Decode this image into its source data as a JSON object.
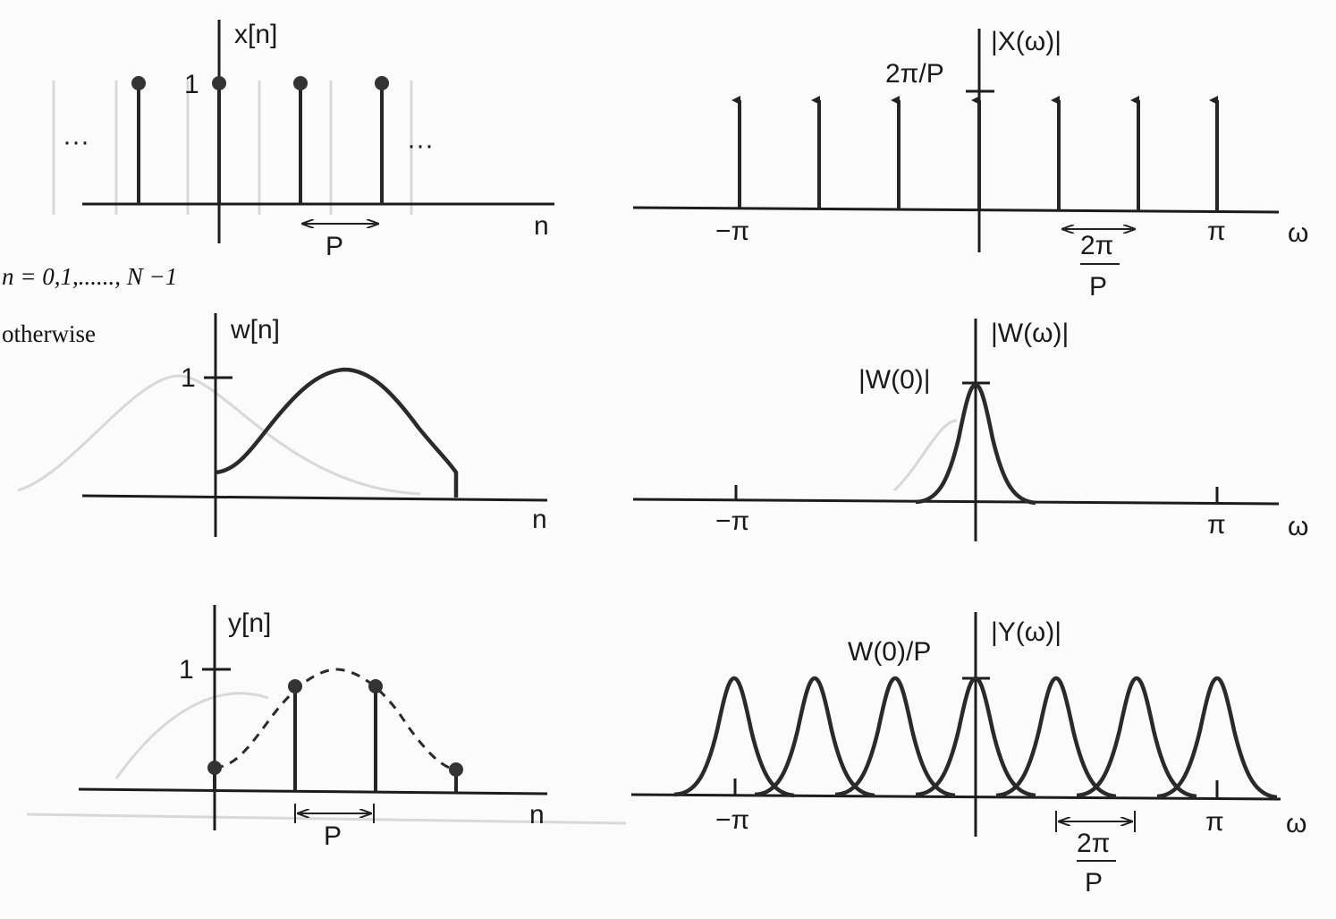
{
  "side_text": {
    "range": "n = 0,1,......, N −1",
    "otherwise": "otherwise"
  },
  "panels": {
    "x_time": {
      "title": "x[n]",
      "unit_tick": "1",
      "dots_left": "···",
      "dots_right": "···",
      "axis": "n",
      "period": "P"
    },
    "x_freq": {
      "title": "|X(ω)|",
      "height_label": "2π/P",
      "neg_pi": "−π",
      "pos_pi": "π",
      "axis": "ω",
      "spacing_num": "2π",
      "spacing_den": "P"
    },
    "w_time": {
      "title": "w[n]",
      "unit_tick": "1",
      "axis": "n"
    },
    "w_freq": {
      "title": "|W(ω)|",
      "peak_label": "|W(0)|",
      "neg_pi": "−π",
      "pos_pi": "π",
      "axis": "ω"
    },
    "y_time": {
      "title": "y[n]",
      "unit_tick": "1",
      "axis": "n",
      "period": "P"
    },
    "y_freq": {
      "title": "|Y(ω)|",
      "peak_label": "W(0)/P",
      "neg_pi": "−π",
      "pos_pi": "π",
      "axis": "ω",
      "spacing_num": "2π",
      "spacing_den": "P"
    }
  },
  "colors": {
    "ink": "#262626",
    "paper": "#fbfbfb",
    "bleed_through": "#dcdcdc"
  }
}
